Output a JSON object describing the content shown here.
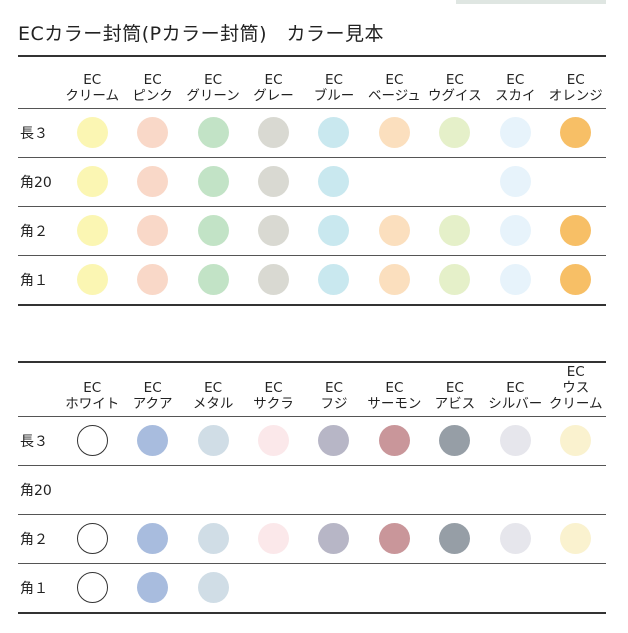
{
  "title": "ECカラー封筒(Pカラー封筒)　カラー見本",
  "colors": {
    "cream": "#fbf6b3",
    "pink": "#f9d8c8",
    "green": "#c2e3c6",
    "gray": "#d9d9d2",
    "blue": "#c9e8ef",
    "beige": "#fbdfbe",
    "uguisu": "#e5f0c9",
    "sky": "#e7f3fb",
    "orange": "#f7bf66",
    "white": "#ffffff",
    "aqua": "#a8bcde",
    "metal": "#d0dde6",
    "sakura": "#fbe8ea",
    "fuji": "#b7b6c6",
    "salmon": "#c9969a",
    "abyss": "#969ea6",
    "silver": "#e6e6ec",
    "usucream": "#faf2cf"
  },
  "table1": {
    "columns": [
      {
        "line1": "EC",
        "line2": "クリーム",
        "color": "cream"
      },
      {
        "line1": "EC",
        "line2": "ピンク",
        "color": "pink"
      },
      {
        "line1": "EC",
        "line2": "グリーン",
        "color": "green"
      },
      {
        "line1": "EC",
        "line2": "グレー",
        "color": "gray"
      },
      {
        "line1": "EC",
        "line2": "ブルー",
        "color": "blue"
      },
      {
        "line1": "EC",
        "line2": "ベージュ",
        "color": "beige"
      },
      {
        "line1": "EC",
        "line2": "ウグイス",
        "color": "uguisu"
      },
      {
        "line1": "EC",
        "line2": "スカイ",
        "color": "sky"
      },
      {
        "line1": "EC",
        "line2": "オレンジ",
        "color": "orange"
      }
    ],
    "rows": [
      {
        "label": "長３",
        "available": [
          1,
          1,
          1,
          1,
          1,
          1,
          1,
          1,
          1
        ]
      },
      {
        "label": "角20",
        "available": [
          1,
          1,
          1,
          1,
          1,
          0,
          0,
          1,
          0
        ]
      },
      {
        "label": "角２",
        "available": [
          1,
          1,
          1,
          1,
          1,
          1,
          1,
          1,
          1
        ]
      },
      {
        "label": "角１",
        "available": [
          1,
          1,
          1,
          1,
          1,
          1,
          1,
          1,
          1
        ]
      }
    ]
  },
  "table2": {
    "columns": [
      {
        "line1": "EC",
        "line2": "ホワイト",
        "line3": "",
        "color": "white",
        "outline": true
      },
      {
        "line1": "EC",
        "line2": "アクア",
        "line3": "",
        "color": "aqua"
      },
      {
        "line1": "EC",
        "line2": "メタル",
        "line3": "",
        "color": "metal"
      },
      {
        "line1": "EC",
        "line2": "サクラ",
        "line3": "",
        "color": "sakura"
      },
      {
        "line1": "EC",
        "line2": "フジ",
        "line3": "",
        "color": "fuji"
      },
      {
        "line1": "EC",
        "line2": "サーモン",
        "line3": "",
        "color": "salmon"
      },
      {
        "line1": "EC",
        "line2": "アビス",
        "line3": "",
        "color": "abyss"
      },
      {
        "line1": "EC",
        "line2": "シルバー",
        "line3": "",
        "color": "silver"
      },
      {
        "line1": "EC",
        "line2": "ウス",
        "line3": "クリーム",
        "color": "usucream"
      }
    ],
    "rows": [
      {
        "label": "長３",
        "available": [
          1,
          1,
          1,
          1,
          1,
          1,
          1,
          1,
          1
        ]
      },
      {
        "label": "角20",
        "available": [
          0,
          0,
          0,
          0,
          0,
          0,
          0,
          0,
          0
        ]
      },
      {
        "label": "角２",
        "available": [
          1,
          1,
          1,
          1,
          1,
          1,
          1,
          1,
          1
        ]
      },
      {
        "label": "角１",
        "available": [
          1,
          1,
          1,
          0,
          0,
          0,
          0,
          0,
          0
        ]
      }
    ]
  }
}
